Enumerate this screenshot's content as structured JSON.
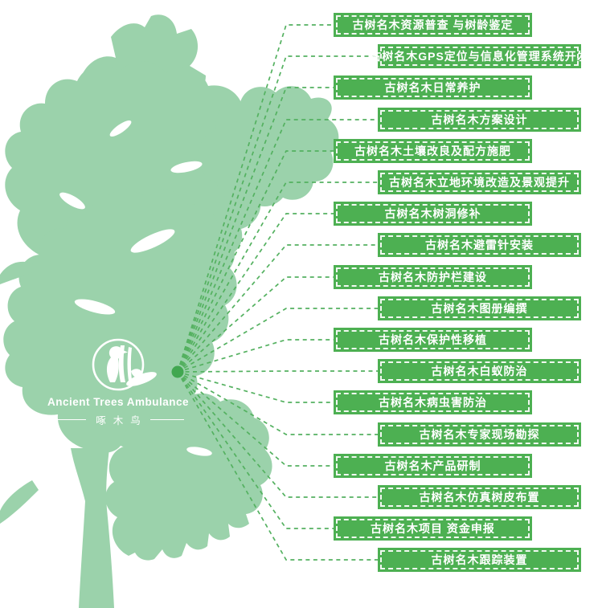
{
  "logo": {
    "icon": "woodpecker-icon",
    "title": "Ancient Trees Ambulance",
    "subtitle": "啄木鸟"
  },
  "colors": {
    "banner_green": "#4db052",
    "tree_green": "#9bd2ab",
    "line_green": "#54b160",
    "dot_green": "#41a750",
    "text_white": "#ffffff"
  },
  "banners": [
    {
      "label": "古树名木资源普查 与树龄鉴定"
    },
    {
      "label": "古树名木GPS定位与信息化管理系统开发"
    },
    {
      "label": "古树名木日常养护"
    },
    {
      "label": "古树名木方案设计"
    },
    {
      "label": "古树名木土壤改良及配方施肥"
    },
    {
      "label": "古树名木立地环境改造及景观提升"
    },
    {
      "label": "古树名木树洞修补"
    },
    {
      "label": "古树名木避雷针安装"
    },
    {
      "label": "古树名木防护栏建设"
    },
    {
      "label": "古树名木图册编撰"
    },
    {
      "label": "古树名木保护性移植"
    },
    {
      "label": "古树名木白蚁防治"
    },
    {
      "label": "古树名木病虫害防治"
    },
    {
      "label": "古树名木专家现场勘探"
    },
    {
      "label": "古树名木产品研制"
    },
    {
      "label": "古树名木仿真树皮布置"
    },
    {
      "label": "古树名木项目 资金申报"
    },
    {
      "label": "古树名木跟踪装置"
    }
  ]
}
